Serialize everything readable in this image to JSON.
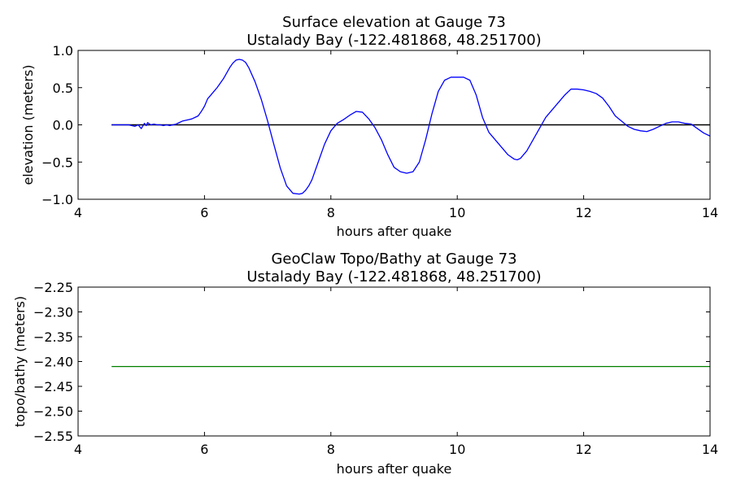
{
  "chart_data": [
    {
      "type": "line",
      "title": "Surface elevation at Gauge 73",
      "subtitle": "Ustalady Bay  (-122.481868, 48.251700)",
      "xlabel": "hours after quake",
      "ylabel": "elevation (meters)",
      "xlim": [
        4,
        14
      ],
      "ylim": [
        -1.0,
        1.0
      ],
      "xticks": [
        4,
        6,
        8,
        10,
        12,
        14
      ],
      "xtick_labels": [
        "4",
        "6",
        "8",
        "10",
        "12",
        "14"
      ],
      "yticks": [
        -1.0,
        -0.5,
        0.0,
        0.5,
        1.0
      ],
      "ytick_labels": [
        "−1.0",
        "−0.5",
        "0.0",
        "0.5",
        "1.0"
      ],
      "grid": false,
      "reference_line": {
        "y": 0.0,
        "x_range": [
          4.53,
          14
        ],
        "color": "#000000"
      },
      "series": [
        {
          "color": "#0000ff",
          "x": [
            4.53,
            4.6,
            4.7,
            4.8,
            4.9,
            4.95,
            5.0,
            5.05,
            5.08,
            5.1,
            5.15,
            5.2,
            5.25,
            5.3,
            5.35,
            5.4,
            5.45,
            5.5,
            5.55,
            5.6,
            5.65,
            5.7,
            5.75,
            5.8,
            5.85,
            5.9,
            5.95,
            6.0,
            6.05,
            6.1,
            6.15,
            6.2,
            6.3,
            6.4,
            6.45,
            6.5,
            6.55,
            6.6,
            6.65,
            6.7,
            6.8,
            6.9,
            7.0,
            7.1,
            7.2,
            7.3,
            7.4,
            7.5,
            7.55,
            7.6,
            7.65,
            7.7,
            7.8,
            7.9,
            8.0,
            8.1,
            8.2,
            8.3,
            8.4,
            8.5,
            8.6,
            8.7,
            8.8,
            8.9,
            9.0,
            9.1,
            9.2,
            9.3,
            9.4,
            9.5,
            9.6,
            9.7,
            9.8,
            9.9,
            10.0,
            10.1,
            10.2,
            10.3,
            10.4,
            10.5,
            10.6,
            10.7,
            10.8,
            10.9,
            10.95,
            11.0,
            11.1,
            11.2,
            11.3,
            11.4,
            11.5,
            11.6,
            11.7,
            11.8,
            11.9,
            12.0,
            12.1,
            12.2,
            12.3,
            12.4,
            12.5,
            12.6,
            12.7,
            12.8,
            12.9,
            13.0,
            13.1,
            13.2,
            13.3,
            13.4,
            13.5,
            13.6,
            13.7,
            13.8,
            13.9,
            14.0
          ],
          "y": [
            0.0,
            0.0,
            0.0,
            0.0,
            -0.02,
            0.0,
            -0.05,
            0.02,
            -0.01,
            0.03,
            0.0,
            0.01,
            0.0,
            0.0,
            -0.01,
            0.0,
            -0.01,
            0.0,
            0.01,
            0.03,
            0.05,
            0.06,
            0.07,
            0.08,
            0.1,
            0.12,
            0.18,
            0.25,
            0.35,
            0.4,
            0.45,
            0.5,
            0.62,
            0.77,
            0.83,
            0.87,
            0.88,
            0.87,
            0.84,
            0.77,
            0.58,
            0.34,
            0.05,
            -0.27,
            -0.58,
            -0.82,
            -0.92,
            -0.93,
            -0.92,
            -0.88,
            -0.82,
            -0.74,
            -0.5,
            -0.26,
            -0.08,
            0.02,
            0.07,
            0.13,
            0.18,
            0.17,
            0.08,
            -0.04,
            -0.2,
            -0.4,
            -0.57,
            -0.63,
            -0.65,
            -0.63,
            -0.5,
            -0.2,
            0.15,
            0.45,
            0.6,
            0.64,
            0.64,
            0.64,
            0.6,
            0.4,
            0.1,
            -0.1,
            -0.2,
            -0.3,
            -0.4,
            -0.46,
            -0.47,
            -0.45,
            -0.35,
            -0.2,
            -0.05,
            0.1,
            0.2,
            0.3,
            0.4,
            0.48,
            0.48,
            0.47,
            0.45,
            0.42,
            0.36,
            0.25,
            0.12,
            0.05,
            -0.02,
            -0.06,
            -0.08,
            -0.09,
            -0.06,
            -0.02,
            0.02,
            0.04,
            0.04,
            0.02,
            0.01,
            -0.05,
            -0.11,
            -0.15
          ]
        }
      ]
    },
    {
      "type": "line",
      "title": "GeoClaw Topo/Bathy at Gauge 73",
      "subtitle": "Ustalady Bay  (-122.481868, 48.251700)",
      "xlabel": "hours after quake",
      "ylabel": "topo/bathy (meters)",
      "xlim": [
        4,
        14
      ],
      "ylim": [
        -2.55,
        -2.25
      ],
      "xticks": [
        4,
        6,
        8,
        10,
        12,
        14
      ],
      "xtick_labels": [
        "4",
        "6",
        "8",
        "10",
        "12",
        "14"
      ],
      "yticks": [
        -2.55,
        -2.5,
        -2.45,
        -2.4,
        -2.35,
        -2.3,
        -2.25
      ],
      "ytick_labels": [
        "−2.55",
        "−2.50",
        "−2.45",
        "−2.40",
        "−2.35",
        "−2.30",
        "−2.25"
      ],
      "grid": false,
      "series": [
        {
          "color": "#008000",
          "x": [
            4.53,
            14.0
          ],
          "y": [
            -2.41,
            -2.41
          ]
        }
      ]
    }
  ]
}
